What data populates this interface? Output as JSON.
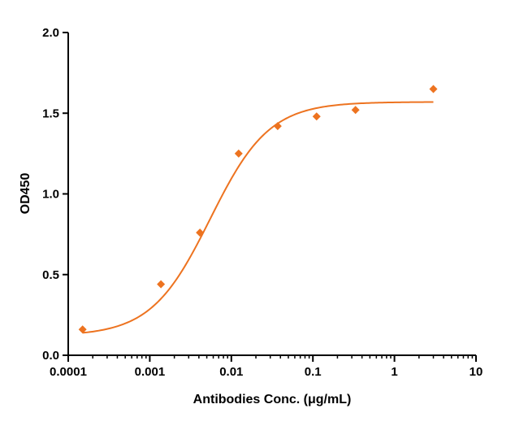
{
  "chart_data": {
    "type": "scatter",
    "title": "",
    "xlabel": "Antibodies Conc. (μg/mL)",
    "ylabel": "OD450",
    "xscale": "log",
    "xlim": [
      0.0001,
      10
    ],
    "ylim": [
      0,
      2.0
    ],
    "x_ticks": [
      0.0001,
      0.001,
      0.01,
      0.1,
      1,
      10
    ],
    "x_tick_labels": [
      "0.0001",
      "0.001",
      "0.01",
      "0.1",
      "1",
      "10"
    ],
    "y_ticks": [
      0,
      0.5,
      1.0,
      1.5,
      2.0
    ],
    "y_tick_labels": [
      "0.0",
      "0.5",
      "1.0",
      "1.5",
      "2.0"
    ],
    "grid": false,
    "legend": "none",
    "color": "#ed7320",
    "marker": "diamond",
    "points": [
      {
        "x": 0.00015,
        "y": 0.16
      },
      {
        "x": 0.00137,
        "y": 0.44
      },
      {
        "x": 0.00412,
        "y": 0.76
      },
      {
        "x": 0.0123,
        "y": 1.25
      },
      {
        "x": 0.037,
        "y": 1.42
      },
      {
        "x": 0.111,
        "y": 1.48
      },
      {
        "x": 0.333,
        "y": 1.52
      },
      {
        "x": 3.0,
        "y": 1.65
      }
    ],
    "fit_curve": {
      "model": "4PL",
      "bottom": 0.12,
      "top": 1.57,
      "ec50": 0.0055,
      "hill": 1.2,
      "x_range": [
        0.00015,
        3.0
      ]
    }
  }
}
